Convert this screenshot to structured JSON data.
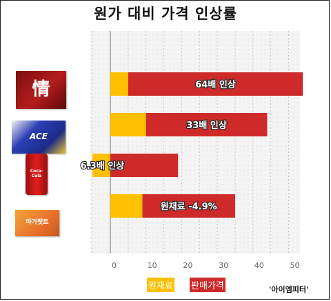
{
  "title": "원가 대비 가격 인상률",
  "chart_data": {
    "type": "bar",
    "orientation": "horizontal",
    "stacked": true,
    "categories": [
      "오리온 초코파이 情",
      "에이스",
      "코카콜라",
      "마가렛트"
    ],
    "series": [
      {
        "name": "원재료",
        "color": "#ffc000",
        "values": [
          5,
          10,
          9,
          -5
        ]
      },
      {
        "name": "판매가격",
        "color": "#cf2a2a",
        "values": [
          49,
          34,
          26,
          19
        ]
      }
    ],
    "data_labels": [
      "64배 인상",
      "33배 인상",
      "원재료 -4.9%",
      "6.3배 인상"
    ],
    "bar_order": [
      0,
      1,
      3,
      2
    ],
    "xlim": [
      -5,
      53
    ],
    "xticks": [
      0,
      10,
      20,
      30,
      40,
      50
    ],
    "grid": true,
    "legend_position": "bottom"
  },
  "legend": {
    "raw_material": "원재료",
    "sale_price": "판매가격"
  },
  "source": "'아이엠피터'",
  "products": [
    {
      "icon": "choco-pie-box-icon",
      "label": "情"
    },
    {
      "icon": "ace-cracker-box-icon",
      "label": "ACE"
    },
    {
      "icon": "coca-cola-can-icon",
      "label": "Coca-Cola"
    },
    {
      "icon": "margaret-box-icon",
      "label": "마가렛트"
    }
  ]
}
